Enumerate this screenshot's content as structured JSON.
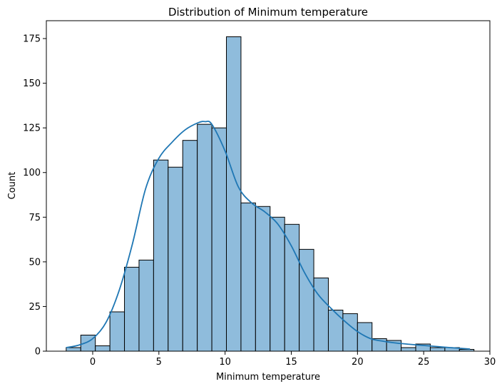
{
  "chart_data": {
    "type": "bar",
    "subtype": "histogram with kde",
    "title": "Distribution of Minimum temperature",
    "xlabel": "Minimum temperature",
    "ylabel": "Count",
    "xlim": [
      -3.5,
      30
    ],
    "ylim": [
      0,
      185
    ],
    "x_ticks": [
      0,
      5,
      10,
      15,
      20,
      25,
      30
    ],
    "y_ticks": [
      0,
      25,
      50,
      75,
      100,
      125,
      150,
      175
    ],
    "grid": false,
    "bin_edges": [
      -2.0,
      -0.9,
      0.2,
      1.3,
      2.4,
      3.5,
      4.6,
      5.7,
      6.8,
      7.9,
      9.0,
      10.1,
      11.2,
      12.3,
      13.4,
      14.5,
      15.6,
      16.7,
      17.8,
      18.9,
      20.0,
      21.1,
      22.2,
      23.3,
      24.4,
      25.5,
      26.6,
      27.7,
      28.8
    ],
    "counts": [
      2,
      9,
      3,
      22,
      47,
      51,
      107,
      103,
      118,
      127,
      125,
      176,
      83,
      81,
      75,
      71,
      57,
      41,
      23,
      21,
      16,
      7,
      6,
      2,
      4,
      2,
      2,
      1
    ],
    "kde": {
      "x": [
        -2.0,
        -1.0,
        0.0,
        1.0,
        2.0,
        3.0,
        4.0,
        5.0,
        6.0,
        7.0,
        8.0,
        8.5,
        9.0,
        10.0,
        11.0,
        12.0,
        13.0,
        14.0,
        15.0,
        16.0,
        17.0,
        18.0,
        19.0,
        20.0,
        21.0,
        22.0,
        23.0,
        24.0,
        25.0,
        26.0,
        27.0,
        28.5
      ],
      "y": [
        2,
        3.5,
        7,
        16,
        34,
        60,
        91,
        108,
        117,
        124,
        128,
        128.5,
        127,
        112,
        92,
        83,
        78,
        71,
        59,
        44,
        32,
        24,
        17,
        11,
        7,
        5.5,
        4.5,
        3.8,
        3.2,
        2.6,
        2.0,
        1.2
      ]
    },
    "colors": {
      "bar_fill": "#8fbcdc",
      "bar_edge": "#000000",
      "kde_line": "#1f77b4"
    }
  }
}
